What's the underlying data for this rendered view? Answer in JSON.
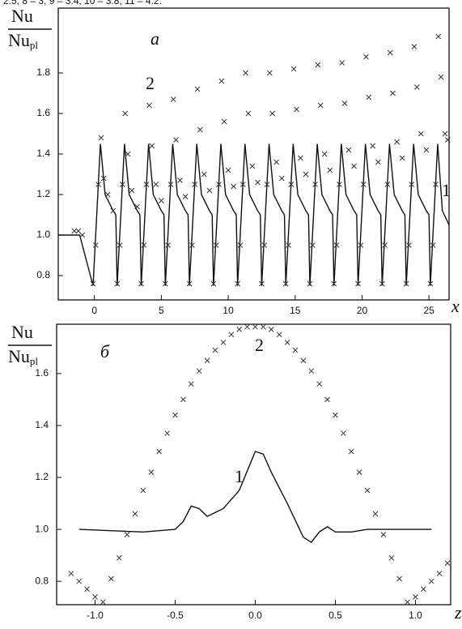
{
  "caption_fragment": "2.5; 8 – 3; 9 – 3.4; 10 – 3.8; 11 – 4.2.",
  "chart_data": [
    {
      "type": "line",
      "panel_label": "a",
      "xlabel": "x",
      "ylabel": "Nu",
      "ylabel_denominator": "Nu",
      "ylabel_subscript": "pl",
      "annotations": [
        "2",
        "1"
      ],
      "xlim": [
        -2.7,
        26.5
      ],
      "ylim": [
        0.68,
        2.12
      ],
      "xticks": [
        0,
        5,
        10,
        15,
        20,
        25
      ],
      "yticks": [
        0.8,
        {
          "value": 1,
          "label": "1.0"
        },
        1.2,
        1.4,
        1.6,
        1.8
      ],
      "grid": false,
      "series": [
        {
          "name": "1",
          "color": "#111111",
          "marker": "none",
          "x": [
            -2.7,
            -1.1,
            -0.1,
            0.45,
            0.8,
            1.4,
            1.6,
            1.7,
            2.25,
            2.6,
            3.2,
            3.4,
            3.5,
            4.05,
            4.4,
            5.0,
            5.2,
            5.3,
            5.85,
            6.2,
            6.8,
            7.0,
            7.1,
            7.65,
            8.0,
            8.6,
            8.8,
            8.9,
            9.45,
            9.8,
            10.4,
            10.6,
            10.7,
            11.25,
            11.6,
            12.2,
            12.4,
            12.5,
            13.05,
            13.4,
            14.0,
            14.2,
            14.3,
            14.85,
            15.2,
            15.8,
            16.0,
            16.1,
            16.65,
            17.0,
            17.6,
            17.8,
            17.9,
            18.45,
            18.8,
            19.4,
            19.6,
            19.7,
            20.25,
            20.6,
            21.2,
            21.4,
            21.5,
            22.05,
            22.4,
            23.0,
            23.2,
            23.3,
            23.85,
            24.2,
            24.8,
            25.0,
            25.1,
            25.65,
            26.0,
            26.5
          ],
          "values": [
            1.0,
            1.0,
            0.75,
            1.45,
            1.2,
            1.12,
            1.1,
            0.75,
            1.45,
            1.2,
            1.12,
            1.1,
            0.75,
            1.45,
            1.2,
            1.12,
            1.1,
            0.75,
            1.45,
            1.2,
            1.12,
            1.1,
            0.75,
            1.45,
            1.2,
            1.12,
            1.1,
            0.75,
            1.45,
            1.2,
            1.12,
            1.1,
            0.75,
            1.45,
            1.2,
            1.12,
            1.1,
            0.75,
            1.45,
            1.2,
            1.12,
            1.1,
            0.75,
            1.45,
            1.2,
            1.12,
            1.1,
            0.75,
            1.45,
            1.2,
            1.12,
            1.1,
            0.75,
            1.45,
            1.2,
            1.12,
            1.1,
            0.75,
            1.45,
            1.2,
            1.12,
            1.1,
            0.75,
            1.45,
            1.2,
            1.12,
            1.1,
            0.75,
            1.45,
            1.2,
            1.12,
            1.1,
            0.75,
            1.45,
            1.12,
            1.05
          ]
        },
        {
          "name": "2",
          "color": "#333333",
          "marker": "x",
          "x": [
            -1.5,
            -1.2,
            -0.9,
            -0.1,
            0.1,
            0.3,
            0.5,
            0.7,
            1.0,
            1.4,
            1.7,
            1.9,
            2.1,
            2.3,
            2.5,
            2.8,
            3.2,
            3.5,
            3.7,
            3.9,
            4.1,
            4.3,
            4.6,
            5.0,
            5.3,
            5.5,
            5.7,
            5.9,
            6.1,
            6.4,
            6.8,
            7.1,
            7.3,
            7.5,
            7.7,
            7.9,
            8.2,
            8.6,
            8.9,
            9.1,
            9.3,
            9.5,
            9.7,
            10.0,
            10.4,
            10.7,
            10.9,
            11.1,
            11.3,
            11.5,
            11.8,
            12.2,
            12.5,
            12.7,
            12.9,
            13.1,
            13.3,
            13.6,
            14.0,
            14.3,
            14.5,
            14.7,
            14.9,
            15.1,
            15.4,
            15.8,
            16.1,
            16.3,
            16.5,
            16.7,
            16.9,
            17.2,
            17.6,
            17.9,
            18.1,
            18.3,
            18.5,
            18.7,
            19.0,
            19.4,
            19.7,
            19.9,
            20.1,
            20.3,
            20.5,
            20.8,
            21.2,
            21.5,
            21.7,
            21.9,
            22.1,
            22.3,
            22.6,
            23.0,
            23.3,
            23.5,
            23.7,
            23.9,
            24.1,
            24.4,
            24.8,
            25.1,
            25.3,
            25.5,
            25.7,
            25.9,
            26.2,
            26.4
          ],
          "values": [
            1.02,
            1.02,
            1.0,
            0.76,
            0.95,
            1.25,
            1.48,
            1.28,
            1.2,
            1.12,
            0.76,
            0.95,
            1.25,
            1.6,
            1.4,
            1.22,
            1.14,
            0.76,
            0.95,
            1.25,
            1.64,
            1.44,
            1.25,
            1.17,
            0.76,
            0.95,
            1.25,
            1.67,
            1.47,
            1.27,
            1.19,
            0.76,
            0.95,
            1.25,
            1.72,
            1.52,
            1.3,
            1.22,
            0.76,
            0.95,
            1.25,
            1.76,
            1.56,
            1.32,
            1.24,
            0.76,
            0.95,
            1.25,
            1.8,
            1.6,
            1.34,
            1.26,
            0.76,
            0.95,
            1.25,
            1.8,
            1.6,
            1.36,
            1.28,
            0.76,
            0.95,
            1.25,
            1.82,
            1.62,
            1.38,
            1.3,
            0.76,
            0.95,
            1.25,
            1.84,
            1.64,
            1.4,
            1.32,
            0.76,
            0.95,
            1.25,
            1.85,
            1.65,
            1.42,
            1.34,
            0.76,
            0.95,
            1.25,
            1.88,
            1.68,
            1.44,
            1.36,
            0.76,
            0.95,
            1.25,
            1.9,
            1.7,
            1.46,
            1.38,
            0.76,
            0.95,
            1.25,
            1.93,
            1.73,
            1.5,
            1.42,
            0.76,
            0.95,
            1.25,
            1.98,
            1.78,
            1.5,
            1.47
          ]
        }
      ]
    },
    {
      "type": "line",
      "panel_label": "б",
      "xlabel": "z",
      "ylabel": "Nu",
      "ylabel_denominator": "Nu",
      "ylabel_subscript": "pl",
      "annotations": [
        "2",
        "1"
      ],
      "xlim": [
        -1.24,
        1.22
      ],
      "ylim": [
        0.71,
        1.79
      ],
      "xticks": [
        {
          "value": -1,
          "label": "-1.0"
        },
        -0.5,
        {
          "value": 0,
          "label": "0.0"
        },
        0.5,
        {
          "value": 1,
          "label": "1.0"
        }
      ],
      "yticks": [
        0.8,
        {
          "value": 1,
          "label": "1.0"
        },
        1.2,
        1.4,
        1.6
      ],
      "grid": false,
      "series": [
        {
          "name": "1",
          "color": "#111111",
          "marker": "none",
          "x": [
            -1.1,
            -0.7,
            -0.5,
            -0.45,
            -0.4,
            -0.35,
            -0.3,
            -0.2,
            -0.1,
            0,
            0.05,
            0.1,
            0.2,
            0.3,
            0.35,
            0.4,
            0.45,
            0.5,
            0.6,
            0.7,
            1.1
          ],
          "values": [
            1.0,
            0.99,
            1.0,
            1.03,
            1.09,
            1.08,
            1.05,
            1.08,
            1.15,
            1.3,
            1.29,
            1.22,
            1.1,
            0.97,
            0.95,
            0.99,
            1.01,
            0.99,
            0.99,
            1.0,
            1.0
          ]
        },
        {
          "name": "2",
          "color": "#333333",
          "marker": "x",
          "x": [
            -1.15,
            -1.1,
            -1.05,
            -1.0,
            -0.95,
            -0.9,
            -0.85,
            -0.8,
            -0.75,
            -0.7,
            -0.65,
            -0.6,
            -0.55,
            -0.5,
            -0.45,
            -0.4,
            -0.35,
            -0.3,
            -0.25,
            -0.2,
            -0.15,
            -0.1,
            -0.05,
            0,
            0.05,
            0.1,
            0.15,
            0.2,
            0.25,
            0.3,
            0.35,
            0.4,
            0.45,
            0.5,
            0.55,
            0.6,
            0.65,
            0.7,
            0.75,
            0.8,
            0.85,
            0.9,
            0.95,
            1.0,
            1.05,
            1.1,
            1.15,
            1.2
          ],
          "values": [
            0.83,
            0.8,
            0.77,
            0.74,
            0.72,
            0.81,
            0.89,
            0.98,
            1.06,
            1.15,
            1.22,
            1.3,
            1.37,
            1.44,
            1.5,
            1.56,
            1.61,
            1.65,
            1.69,
            1.72,
            1.75,
            1.77,
            1.78,
            1.78,
            1.78,
            1.77,
            1.75,
            1.72,
            1.69,
            1.65,
            1.61,
            1.56,
            1.5,
            1.44,
            1.37,
            1.3,
            1.22,
            1.15,
            1.06,
            0.98,
            0.89,
            0.81,
            0.72,
            0.74,
            0.77,
            0.8,
            0.83,
            0.87
          ]
        }
      ]
    }
  ]
}
